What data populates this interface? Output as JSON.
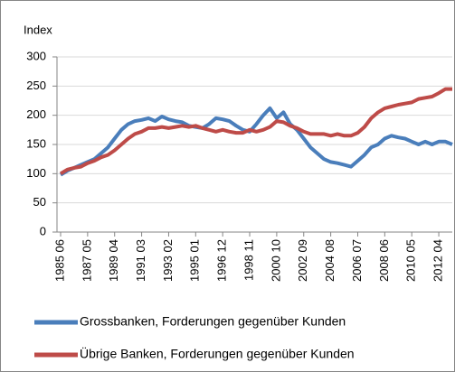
{
  "chart_data": {
    "type": "line",
    "y_label": "Index",
    "categories": [
      "1985 06",
      null,
      null,
      null,
      "1987 05",
      null,
      null,
      null,
      "1989 04",
      null,
      null,
      null,
      "1991 03",
      null,
      null,
      null,
      "1993 02",
      null,
      null,
      null,
      "1995 01",
      null,
      null,
      null,
      "1996 12",
      null,
      null,
      null,
      "1998 11",
      null,
      null,
      null,
      "2000 10",
      null,
      null,
      null,
      "2002 09",
      null,
      null,
      null,
      "2004 08",
      null,
      null,
      null,
      "2006 07",
      null,
      null,
      null,
      "2008 06",
      null,
      null,
      null,
      "2010 05",
      null,
      null,
      null,
      "2012 04",
      null,
      null
    ],
    "series": [
      {
        "name": "Grossbanken, Forderungen gegenüber Kunden",
        "color": "#4a7ebb",
        "values": [
          98,
          105,
          110,
          115,
          120,
          125,
          135,
          145,
          160,
          175,
          185,
          190,
          192,
          195,
          190,
          198,
          193,
          190,
          188,
          182,
          180,
          178,
          185,
          195,
          193,
          190,
          182,
          175,
          172,
          185,
          200,
          212,
          195,
          205,
          185,
          175,
          160,
          145,
          135,
          125,
          120,
          118,
          115,
          112,
          122,
          132,
          145,
          150,
          160,
          165,
          162,
          160,
          155,
          150,
          155,
          150,
          155,
          155,
          150
        ]
      },
      {
        "name": "Übrige Banken, Forderungen gegenüber Kunden",
        "color": "#be4b48",
        "values": [
          100,
          107,
          110,
          112,
          118,
          122,
          128,
          132,
          140,
          150,
          160,
          168,
          172,
          178,
          178,
          180,
          178,
          180,
          182,
          180,
          182,
          178,
          175,
          172,
          175,
          172,
          170,
          170,
          175,
          172,
          175,
          180,
          190,
          188,
          182,
          178,
          172,
          168,
          168,
          168,
          165,
          168,
          165,
          165,
          170,
          180,
          195,
          205,
          212,
          215,
          218,
          220,
          222,
          228,
          230,
          232,
          238,
          245,
          245
        ]
      }
    ],
    "ylim": [
      0,
      300
    ],
    "yticks": [
      0,
      50,
      100,
      150,
      200,
      250,
      300
    ],
    "grid": true
  }
}
